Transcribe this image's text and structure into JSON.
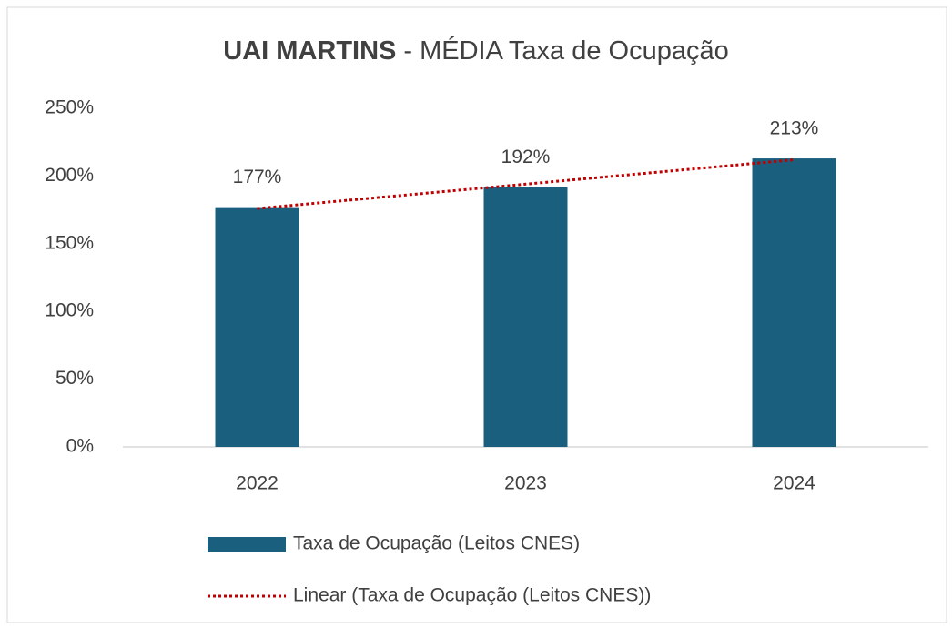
{
  "chart_data": {
    "type": "bar",
    "title": [
      "UAI MARTINS",
      "- MÉDIA Taxa de Ocupação"
    ],
    "categories": [
      "2022",
      "2023",
      "2024"
    ],
    "series": [
      {
        "name": "Taxa de Ocupação (Leitos CNES)",
        "color": "#1b5f7e",
        "values": [
          177,
          192,
          213
        ],
        "value_labels": [
          "177%",
          "192%",
          "213%"
        ]
      }
    ],
    "trendline": {
      "name": "Linear (Taxa de Ocupação (Leitos CNES))",
      "color": "#c00000",
      "type": "linear"
    },
    "ylim": [
      0,
      250
    ],
    "yticks": [
      {
        "value": 0,
        "label": "0%"
      },
      {
        "value": 50,
        "label": "50%"
      },
      {
        "value": 100,
        "label": "100%"
      },
      {
        "value": 150,
        "label": "150%"
      },
      {
        "value": 200,
        "label": "200%"
      },
      {
        "value": 250,
        "label": "250%"
      }
    ],
    "legend": "bottom"
  }
}
